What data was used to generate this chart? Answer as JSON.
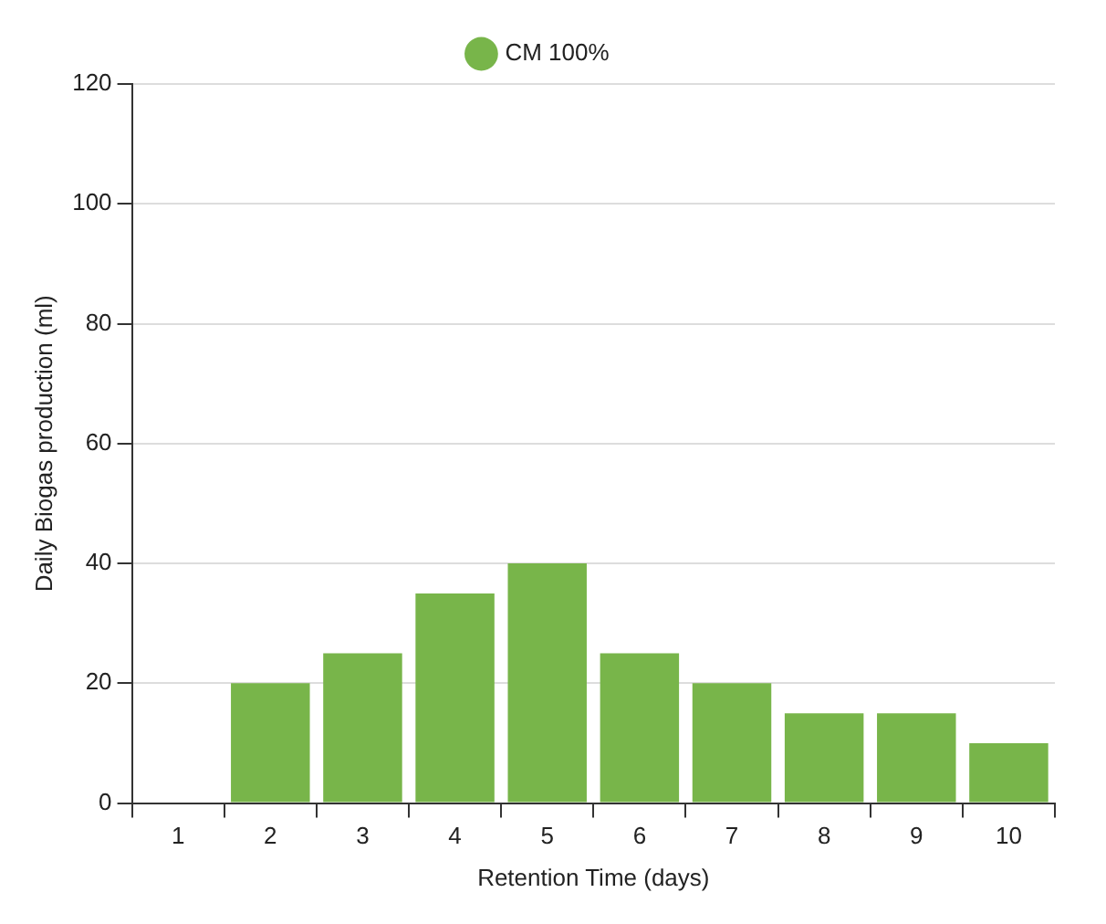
{
  "chart_data": {
    "type": "bar",
    "xlabel": "Retention Time (days)",
    "ylabel": "Daily Biogas production (ml)",
    "categories": [
      "1",
      "2",
      "3",
      "4",
      "5",
      "6",
      "7",
      "8",
      "9",
      "10"
    ],
    "series": [
      {
        "name": "CM 100%",
        "color": "#78b54a",
        "values": [
          0,
          20,
          25,
          35,
          40,
          25,
          20,
          15,
          15,
          10
        ]
      }
    ],
    "ylim": [
      0,
      120
    ],
    "yticks": [
      0,
      20,
      40,
      60,
      80,
      100,
      120
    ],
    "grid": "y",
    "legend": "top"
  }
}
